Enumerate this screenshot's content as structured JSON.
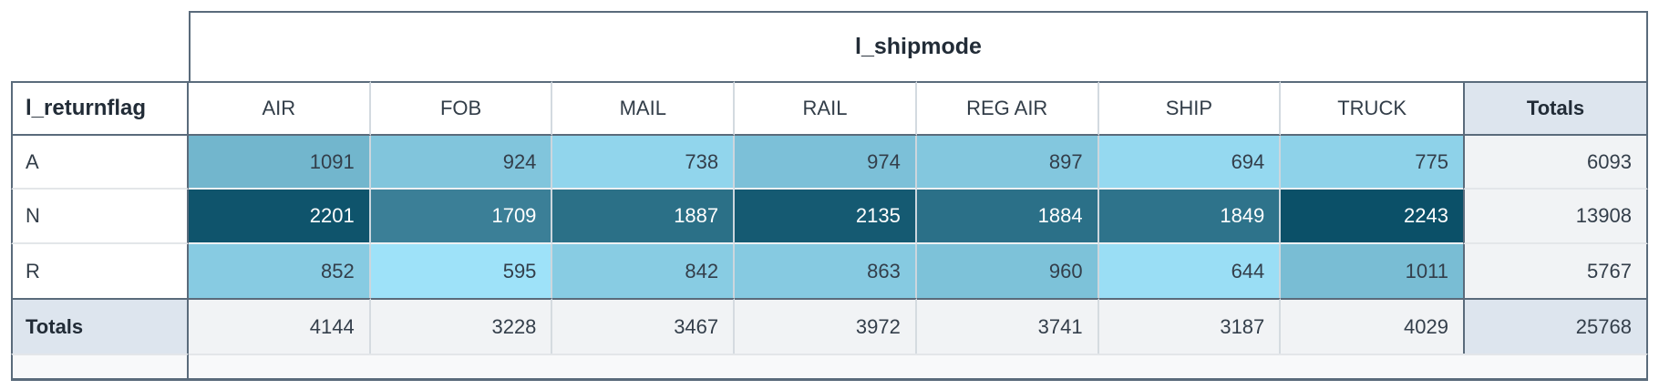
{
  "pivot": {
    "column_dimension": "l_shipmode",
    "row_dimension": "l_returnflag",
    "totals_label": "Totals",
    "columns": [
      "AIR",
      "FOB",
      "MAIL",
      "RAIL",
      "REG AIR",
      "SHIP",
      "TRUCK"
    ],
    "rows": [
      {
        "label": "A",
        "values": [
          1091,
          924,
          738,
          974,
          897,
          694,
          775
        ],
        "total": 6093
      },
      {
        "label": "N",
        "values": [
          2201,
          1709,
          1887,
          2135,
          1884,
          1849,
          2243
        ],
        "total": 13908
      },
      {
        "label": "R",
        "values": [
          852,
          595,
          842,
          863,
          960,
          644,
          1011
        ],
        "total": 5767
      }
    ],
    "column_totals": [
      4144,
      3228,
      3467,
      3972,
      3741,
      3187,
      4029
    ],
    "grand_total": 25768,
    "heatmap": {
      "min_value": 595,
      "max_value": 2243,
      "min_color": "#9EE2F9",
      "max_color": "#0B5068",
      "dark_text": "#333E4A",
      "light_text": "#FFFFFF",
      "text_switch_threshold": 0.5
    },
    "style_colors": {
      "frame_border": "#5A6B7B",
      "totals_accent_bg": "#DDE5EE",
      "totals_subtle_bg": "#F1F3F5",
      "footer_bg": "#F8F9FA"
    }
  }
}
